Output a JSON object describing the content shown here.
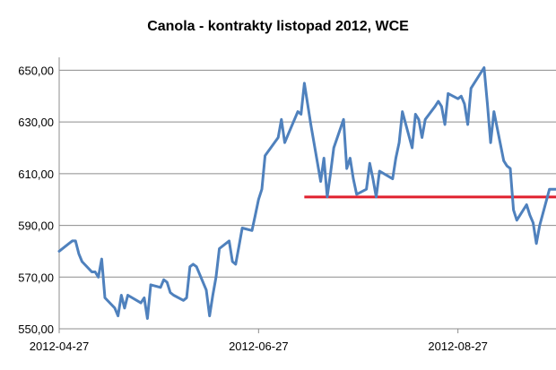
{
  "chart_data": {
    "type": "line",
    "title": "Canola - kontrakty listopad 2012, WCE",
    "xlabel": "",
    "ylabel": "",
    "x_ticks": [
      "2012-04-27",
      "2012-06-27",
      "2012-08-27"
    ],
    "y_ticks": [
      "550,00",
      "570,00",
      "590,00",
      "610,00",
      "630,00",
      "650,00"
    ],
    "ylim": [
      550,
      655
    ],
    "xlim": [
      "2012-04-27",
      "2012-09-26"
    ],
    "grid": "horizontal",
    "legend": "none",
    "series": [
      {
        "color": "#4F81BD",
        "x": [
          "2012-04-27",
          "2012-04-30",
          "2012-05-01",
          "2012-05-02",
          "2012-05-03",
          "2012-05-04",
          "2012-05-07",
          "2012-05-08",
          "2012-05-09",
          "2012-05-10",
          "2012-05-11",
          "2012-05-14",
          "2012-05-15",
          "2012-05-16",
          "2012-05-17",
          "2012-05-18",
          "2012-05-22",
          "2012-05-23",
          "2012-05-24",
          "2012-05-25",
          "2012-05-28",
          "2012-05-29",
          "2012-05-30",
          "2012-05-31",
          "2012-06-01",
          "2012-06-04",
          "2012-06-05",
          "2012-06-06",
          "2012-06-07",
          "2012-06-08",
          "2012-06-11",
          "2012-06-12",
          "2012-06-13",
          "2012-06-14",
          "2012-06-15",
          "2012-06-18",
          "2012-06-19",
          "2012-06-20",
          "2012-06-21",
          "2012-06-22",
          "2012-06-25",
          "2012-06-26",
          "2012-06-27",
          "2012-06-28",
          "2012-06-29",
          "2012-07-03",
          "2012-07-04",
          "2012-07-05",
          "2012-07-06",
          "2012-07-09",
          "2012-07-10",
          "2012-07-11",
          "2012-07-12",
          "2012-07-13",
          "2012-07-16",
          "2012-07-17",
          "2012-07-18",
          "2012-07-19",
          "2012-07-20",
          "2012-07-23",
          "2012-07-24",
          "2012-07-25",
          "2012-07-26",
          "2012-07-27",
          "2012-07-30",
          "2012-07-31",
          "2012-08-01",
          "2012-08-02",
          "2012-08-03",
          "2012-08-07",
          "2012-08-08",
          "2012-08-09",
          "2012-08-10",
          "2012-08-13",
          "2012-08-14",
          "2012-08-15",
          "2012-08-16",
          "2012-08-17",
          "2012-08-20",
          "2012-08-21",
          "2012-08-22",
          "2012-08-23",
          "2012-08-24",
          "2012-08-27",
          "2012-08-28",
          "2012-08-29",
          "2012-08-30",
          "2012-08-31",
          "2012-09-04",
          "2012-09-05",
          "2012-09-06",
          "2012-09-07",
          "2012-09-10",
          "2012-09-11",
          "2012-09-12",
          "2012-09-13",
          "2012-09-14",
          "2012-09-17",
          "2012-09-18",
          "2012-09-19",
          "2012-09-20",
          "2012-09-21",
          "2012-09-24",
          "2012-09-25",
          "2012-09-26"
        ],
        "y": [
          580,
          583,
          584,
          584,
          579,
          576,
          572,
          572,
          570,
          577,
          562,
          558,
          555,
          563,
          558,
          563,
          560,
          562,
          554,
          567,
          566,
          569,
          568,
          564,
          563,
          561,
          562,
          574,
          575,
          574,
          565,
          555,
          563,
          570,
          581,
          584,
          576,
          575,
          582,
          589,
          588,
          594,
          600,
          604,
          617,
          624,
          631,
          622,
          625,
          634,
          633,
          645,
          637,
          629,
          607,
          616,
          601,
          610,
          620,
          631,
          612,
          616,
          608,
          602,
          604,
          614,
          608,
          601,
          611,
          608,
          616,
          622,
          634,
          620,
          633,
          631,
          624,
          631,
          636,
          638,
          636,
          629,
          641,
          639,
          640,
          637,
          629,
          643,
          651,
          637,
          622,
          634,
          615,
          613,
          612,
          596,
          592,
          598,
          594,
          591,
          583,
          590,
          604,
          604,
          604
        ]
      }
    ],
    "reference_line": {
      "y": 601,
      "x_start": "2012-07-11",
      "x_end": "2012-09-26",
      "color": "#E0202E"
    }
  }
}
